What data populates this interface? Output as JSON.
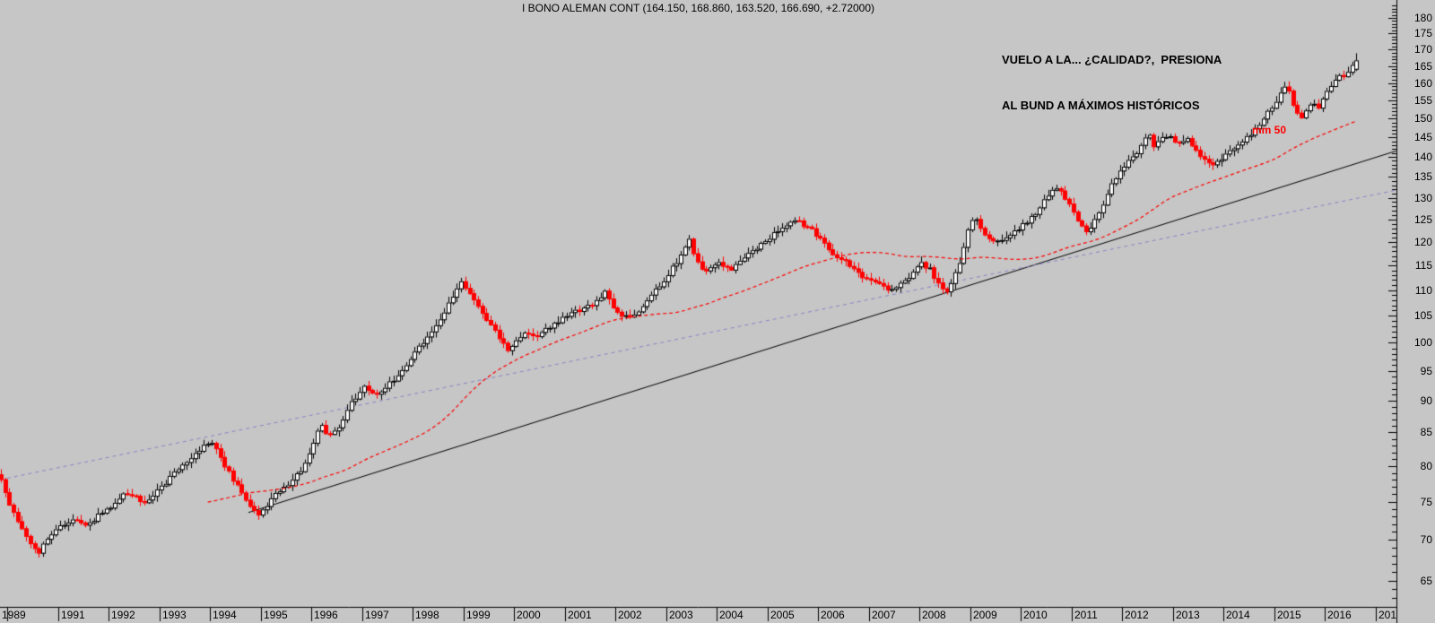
{
  "chart": {
    "title": "I BONO ALEMAN CONT (164.150, 168.860, 163.520, 166.690, +2.72000)",
    "annotation_line1": "VUELO A LA... ¿CALIDAD?,  PRESIONA",
    "annotation_line2": "AL BUND A MÁXIMOS HISTÓRICOS",
    "ma_label": "mm 50"
  },
  "chart_data": {
    "type": "candlestick",
    "instrument": "I BONO ALEMAN CONT",
    "timeframe": "monthly",
    "last_bar": {
      "open": 164.15,
      "high": 168.86,
      "low": 163.52,
      "close": 166.69,
      "change": "+2.72000"
    },
    "y_axis": {
      "scale": "log",
      "tick_values": [
        180,
        175,
        170,
        165,
        160,
        155,
        150,
        145,
        140,
        135,
        130,
        125,
        120,
        115,
        110,
        105,
        100,
        95,
        90,
        85,
        80,
        75,
        70,
        65
      ],
      "minor_step": 1,
      "price_at_plot_top": 185.9,
      "price_at_plot_bottom": 62.0
    },
    "x_axis": {
      "start_year": 1989.875,
      "end_year": 2017.41,
      "labels": [
        {
          "text": "1989",
          "year": null
        },
        {
          "text": "1991",
          "year": 1991
        },
        {
          "text": "1992",
          "year": 1992
        },
        {
          "text": "1993",
          "year": 1993
        },
        {
          "text": "1994",
          "year": 1994
        },
        {
          "text": "1995",
          "year": 1995
        },
        {
          "text": "1996",
          "year": 1996
        },
        {
          "text": "1997",
          "year": 1997
        },
        {
          "text": "1998",
          "year": 1998
        },
        {
          "text": "1999",
          "year": 1999
        },
        {
          "text": "2000",
          "year": 2000
        },
        {
          "text": "2001",
          "year": 2001
        },
        {
          "text": "2002",
          "year": 2002
        },
        {
          "text": "2003",
          "year": 2003
        },
        {
          "text": "2004",
          "year": 2004
        },
        {
          "text": "2005",
          "year": 2005
        },
        {
          "text": "2006",
          "year": 2006
        },
        {
          "text": "2007",
          "year": 2007
        },
        {
          "text": "2008",
          "year": 2008
        },
        {
          "text": "2009",
          "year": 2009
        },
        {
          "text": "2010",
          "year": 2010
        },
        {
          "text": "2011",
          "year": 2011
        },
        {
          "text": "2012",
          "year": 2012
        },
        {
          "text": "2013",
          "year": 2013
        },
        {
          "text": "2014",
          "year": 2014
        },
        {
          "text": "2015",
          "year": 2015
        },
        {
          "text": "2016",
          "year": 2016
        },
        {
          "text": "201",
          "year": 2017
        }
      ]
    },
    "moving_average": {
      "name": "mm 50",
      "period": 50,
      "style": "dashed",
      "color": "#ff0000"
    },
    "trendlines": [
      {
        "name": "support-trendline",
        "style": "solid",
        "color": "#000000",
        "from": {
          "year": 1994.76,
          "price": 73.6
        },
        "to": {
          "year": 2017.41,
          "price": 141.6
        }
      },
      {
        "name": "channel-line",
        "style": "dashed",
        "color": "#8585c8",
        "from": {
          "year": 1989.86,
          "price": 78.1
        },
        "to": {
          "year": 2017.41,
          "price": 131.9
        }
      }
    ],
    "anchor_closes": [
      [
        1989.88,
        78.2
      ],
      [
        1990.0,
        75.0
      ],
      [
        1990.17,
        72.8
      ],
      [
        1990.33,
        71.0
      ],
      [
        1990.5,
        69.3
      ],
      [
        1990.63,
        68.6
      ],
      [
        1990.79,
        70.2
      ],
      [
        1990.92,
        71.0
      ],
      [
        1991.08,
        71.8
      ],
      [
        1991.33,
        72.6
      ],
      [
        1991.5,
        71.9
      ],
      [
        1991.67,
        72.5
      ],
      [
        1991.92,
        73.8
      ],
      [
        1992.08,
        74.6
      ],
      [
        1992.33,
        76.2
      ],
      [
        1992.5,
        75.9
      ],
      [
        1992.67,
        74.9
      ],
      [
        1992.92,
        76.3
      ],
      [
        1993.08,
        77.4
      ],
      [
        1993.33,
        79.3
      ],
      [
        1993.58,
        80.8
      ],
      [
        1993.83,
        82.6
      ],
      [
        1994.0,
        83.8
      ],
      [
        1994.13,
        82.6
      ],
      [
        1994.29,
        80.2
      ],
      [
        1994.46,
        78.0
      ],
      [
        1994.63,
        76.2
      ],
      [
        1994.79,
        74.2
      ],
      [
        1994.96,
        73.2
      ],
      [
        1995.13,
        74.6
      ],
      [
        1995.33,
        76.2
      ],
      [
        1995.58,
        77.8
      ],
      [
        1995.83,
        79.8
      ],
      [
        1996.0,
        82.2
      ],
      [
        1996.17,
        86.5
      ],
      [
        1996.33,
        84.3
      ],
      [
        1996.5,
        85.2
      ],
      [
        1996.71,
        88.6
      ],
      [
        1996.92,
        91.3
      ],
      [
        1997.08,
        92.4
      ],
      [
        1997.25,
        90.9
      ],
      [
        1997.5,
        92.6
      ],
      [
        1997.75,
        94.8
      ],
      [
        1997.92,
        96.8
      ],
      [
        1998.17,
        99.8
      ],
      [
        1998.42,
        102.4
      ],
      [
        1998.63,
        105.8
      ],
      [
        1998.83,
        109.5
      ],
      [
        1998.96,
        111.6
      ],
      [
        1999.08,
        110.2
      ],
      [
        1999.25,
        107.4
      ],
      [
        1999.46,
        104.3
      ],
      [
        1999.67,
        101.6
      ],
      [
        1999.88,
        98.9
      ],
      [
        2000.08,
        100.8
      ],
      [
        2000.25,
        102.2
      ],
      [
        2000.42,
        101.1
      ],
      [
        2000.63,
        102.6
      ],
      [
        2000.83,
        103.6
      ],
      [
        2001.04,
        105.0
      ],
      [
        2001.29,
        106.3
      ],
      [
        2001.54,
        107.4
      ],
      [
        2001.79,
        109.6
      ],
      [
        2001.92,
        107.2
      ],
      [
        2002.08,
        105.2
      ],
      [
        2002.29,
        104.4
      ],
      [
        2002.5,
        106.6
      ],
      [
        2002.71,
        109.2
      ],
      [
        2002.92,
        111.6
      ],
      [
        2003.13,
        114.6
      ],
      [
        2003.33,
        118.0
      ],
      [
        2003.46,
        120.4
      ],
      [
        2003.58,
        116.8
      ],
      [
        2003.75,
        113.4
      ],
      [
        2003.92,
        114.6
      ],
      [
        2004.08,
        115.6
      ],
      [
        2004.25,
        114.2
      ],
      [
        2004.46,
        115.8
      ],
      [
        2004.67,
        117.8
      ],
      [
        2004.88,
        119.6
      ],
      [
        2005.08,
        121.3
      ],
      [
        2005.29,
        123.0
      ],
      [
        2005.54,
        124.8
      ],
      [
        2005.75,
        123.6
      ],
      [
        2005.92,
        122.2
      ],
      [
        2006.08,
        120.0
      ],
      [
        2006.29,
        117.8
      ],
      [
        2006.5,
        116.0
      ],
      [
        2006.71,
        114.2
      ],
      [
        2006.92,
        112.6
      ],
      [
        2007.17,
        111.4
      ],
      [
        2007.42,
        109.9
      ],
      [
        2007.63,
        111.2
      ],
      [
        2007.83,
        112.8
      ],
      [
        2008.04,
        115.6
      ],
      [
        2008.21,
        114.2
      ],
      [
        2008.38,
        111.4
      ],
      [
        2008.5,
        109.4
      ],
      [
        2008.67,
        112.2
      ],
      [
        2008.83,
        117.0
      ],
      [
        2008.96,
        123.0
      ],
      [
        2009.08,
        125.6
      ],
      [
        2009.25,
        122.4
      ],
      [
        2009.42,
        119.8
      ],
      [
        2009.58,
        120.6
      ],
      [
        2009.79,
        122.0
      ],
      [
        2009.96,
        123.2
      ],
      [
        2010.13,
        124.4
      ],
      [
        2010.33,
        127.2
      ],
      [
        2010.54,
        130.4
      ],
      [
        2010.67,
        132.8
      ],
      [
        2010.83,
        130.8
      ],
      [
        2010.96,
        128.2
      ],
      [
        2011.13,
        124.8
      ],
      [
        2011.29,
        122.4
      ],
      [
        2011.46,
        124.8
      ],
      [
        2011.63,
        128.4
      ],
      [
        2011.79,
        133.2
      ],
      [
        2011.96,
        136.8
      ],
      [
        2012.13,
        139.0
      ],
      [
        2012.29,
        141.2
      ],
      [
        2012.42,
        144.8
      ],
      [
        2012.54,
        145.4
      ],
      [
        2012.63,
        142.8
      ],
      [
        2012.79,
        144.6
      ],
      [
        2012.96,
        145.4
      ],
      [
        2013.13,
        143.2
      ],
      [
        2013.29,
        144.4
      ],
      [
        2013.46,
        141.4
      ],
      [
        2013.63,
        139.2
      ],
      [
        2013.79,
        137.8
      ],
      [
        2013.96,
        139.6
      ],
      [
        2014.13,
        141.2
      ],
      [
        2014.33,
        143.8
      ],
      [
        2014.54,
        146.2
      ],
      [
        2014.75,
        149.2
      ],
      [
        2014.96,
        153.2
      ],
      [
        2015.13,
        157.2
      ],
      [
        2015.25,
        159.8
      ],
      [
        2015.38,
        153.4
      ],
      [
        2015.5,
        149.8
      ],
      [
        2015.63,
        152.6
      ],
      [
        2015.79,
        154.4
      ],
      [
        2015.88,
        153.2
      ],
      [
        2016.0,
        156.4
      ],
      [
        2016.13,
        159.4
      ],
      [
        2016.25,
        162.4
      ],
      [
        2016.33,
        161.2
      ],
      [
        2016.46,
        163.4
      ],
      [
        2016.58,
        166.69
      ]
    ],
    "colors": {
      "background": "#c6c6c6",
      "up_candle": "#ffffff",
      "down_candle": "#ff0000",
      "outline": "#000000",
      "ma_line": "#ff0000",
      "trendline": "#000000",
      "channel_line": "#8585c8",
      "text": "#000000"
    }
  }
}
